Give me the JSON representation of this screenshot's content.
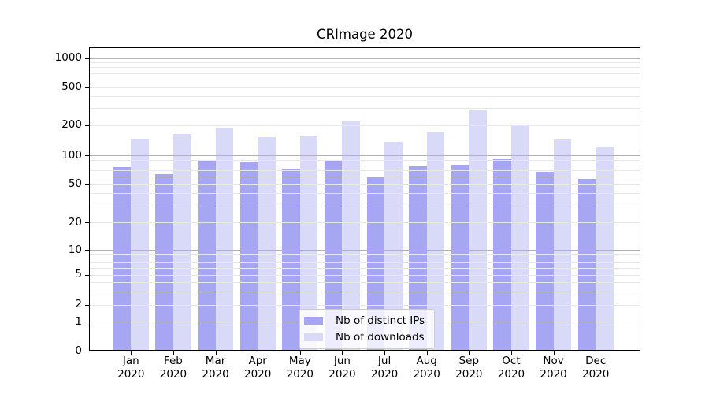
{
  "title": "CRImage 2020",
  "chart_data": {
    "type": "bar",
    "title": "CRImage 2020",
    "scale": "symlog",
    "grid": true,
    "categories": [
      "Jan",
      "Feb",
      "Mar",
      "Apr",
      "May",
      "Jun",
      "Jul",
      "Aug",
      "Sep",
      "Oct",
      "Nov",
      "Dec"
    ],
    "x_tick_second_line": "2020",
    "series": [
      {
        "name": "Nb of distinct IPs",
        "color": "#a6a6f2",
        "values": [
          75,
          64,
          87,
          85,
          72,
          87,
          60,
          76,
          79,
          91,
          67,
          57
        ]
      },
      {
        "name": "Nb of downloads",
        "color": "#d9d9f8",
        "values": [
          146,
          162,
          187,
          150,
          153,
          220,
          135,
          172,
          285,
          201,
          143,
          122
        ]
      }
    ],
    "y_ticks": [
      0,
      1,
      2,
      5,
      10,
      20,
      50,
      100,
      200,
      500,
      1000
    ],
    "ylim": [
      0,
      1400
    ],
    "legend_position": "bottom-center",
    "colors": {
      "major_grid": "#b2b2b2",
      "minor_grid": "#e7e7e7",
      "axis": "#000000",
      "background": "#ffffff"
    }
  }
}
